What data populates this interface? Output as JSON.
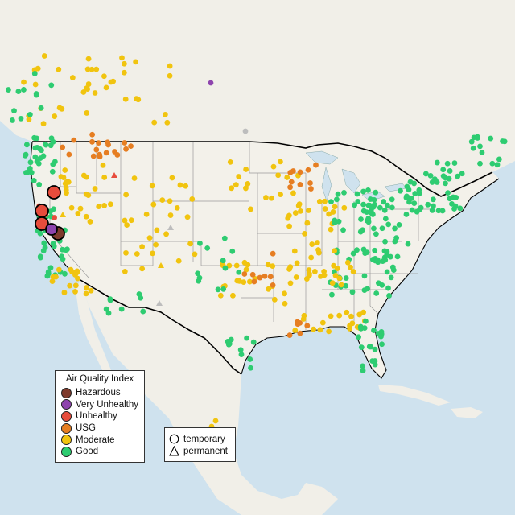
{
  "legend": {
    "title": "Air Quality Index",
    "categories": [
      {
        "label": "Hazardous",
        "color": "#7e3a2c"
      },
      {
        "label": "Very Unhealthy",
        "color": "#8e44ad"
      },
      {
        "label": "Unhealthy",
        "color": "#e74c3c"
      },
      {
        "label": "USG",
        "color": "#e67e22"
      },
      {
        "label": "Moderate",
        "color": "#f1c40f"
      },
      {
        "label": "Good",
        "color": "#2ecc71"
      }
    ]
  },
  "shape_legend": {
    "items": [
      {
        "label": "temporary",
        "shape": "circle"
      },
      {
        "label": "permanent",
        "shape": "triangle"
      }
    ]
  },
  "map": {
    "ocean_color": "#cfe2ee",
    "land_color": "#f1efe8",
    "border_color": "#000000",
    "state_line_color": "#9a9a9a"
  }
}
